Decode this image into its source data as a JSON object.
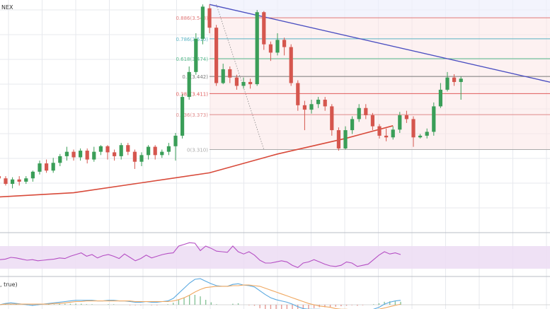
{
  "header": {
    "exchange_fragment": "NEX",
    "macd_fragment": ", true)"
  },
  "colors": {
    "bull": "#3a9e58",
    "bear": "#d5564e",
    "ema": "#d84a3a",
    "trendline": "#4b4fc1",
    "rsi": "#b54fc4",
    "rsi_band": "#ecdcf3",
    "macd": "#5aa9e0",
    "signal": "#f0a860",
    "fib_shade": "#fbe6e6",
    "fib_top_shade": "#eeeffc"
  },
  "chart_data": {
    "type": "candlestick",
    "price_range": [
      3.16,
      3.58
    ],
    "fibonacci": {
      "from": 3.31,
      "to": 3.56,
      "levels": [
        {
          "ratio": 0.886,
          "label": "0.886(3.548)",
          "price": 3.548,
          "color": "#e07a7a"
        },
        {
          "ratio": 0.786,
          "label": "0.786(3.510)",
          "price": 3.51,
          "color": "#5ab4c4"
        },
        {
          "ratio": 0.618,
          "label": "0.618(3.474)",
          "price": 3.474,
          "color": "#55b88a"
        },
        {
          "ratio": 0.5,
          "label": "0.5(3.442)",
          "price": 3.442,
          "color": "#777777"
        },
        {
          "ratio": 0.382,
          "label": "0.382(3.411)",
          "price": 3.411,
          "color": "#e05a5a"
        },
        {
          "ratio": 0.236,
          "label": "0.236(3.373)",
          "price": 3.373,
          "color": "#e08a8a"
        },
        {
          "ratio": 0,
          "label": "0(3.310)",
          "price": 3.31,
          "color": "#aaaaaa"
        }
      ]
    },
    "trendline": [
      [
        0,
        3.572
      ],
      [
        55,
        3.418
      ]
    ],
    "ema": [
      [
        -36,
        3.221
      ],
      [
        -20,
        3.232
      ],
      [
        -10,
        3.25
      ],
      [
        0,
        3.268
      ],
      [
        10,
        3.302
      ],
      [
        20,
        3.33
      ],
      [
        27,
        3.353
      ]
    ],
    "candles": [
      [
        -36,
        3.262,
        3.255,
        3.27,
        3.24
      ],
      [
        -35,
        3.255,
        3.266,
        3.272,
        3.25
      ],
      [
        -34,
        3.266,
        3.279,
        3.284,
        3.26
      ],
      [
        -33,
        3.279,
        3.272,
        3.288,
        3.268
      ],
      [
        -32,
        3.272,
        3.262,
        3.275,
        3.255
      ],
      [
        -31,
        3.262,
        3.258,
        3.265,
        3.25
      ],
      [
        -30,
        3.258,
        3.248,
        3.262,
        3.245
      ],
      [
        -29,
        3.248,
        3.256,
        3.26,
        3.24
      ],
      [
        -28,
        3.256,
        3.252,
        3.262,
        3.245
      ],
      [
        -27,
        3.252,
        3.258,
        3.262,
        3.248
      ],
      [
        -26,
        3.258,
        3.27,
        3.272,
        3.252
      ],
      [
        -25,
        3.27,
        3.285,
        3.29,
        3.265
      ],
      [
        -24,
        3.285,
        3.272,
        3.292,
        3.268
      ],
      [
        -23,
        3.272,
        3.286,
        3.295,
        3.268
      ],
      [
        -22,
        3.286,
        3.298,
        3.302,
        3.28
      ],
      [
        -21,
        3.298,
        3.306,
        3.315,
        3.29
      ],
      [
        -20,
        3.306,
        3.296,
        3.31,
        3.29
      ],
      [
        -19,
        3.296,
        3.308,
        3.312,
        3.29
      ],
      [
        -18,
        3.308,
        3.292,
        3.312,
        3.285
      ],
      [
        -17,
        3.292,
        3.306,
        3.315,
        3.288
      ],
      [
        -16,
        3.306,
        3.316,
        3.318,
        3.3
      ],
      [
        -15,
        3.316,
        3.305,
        3.318,
        3.292
      ],
      [
        -14,
        3.305,
        3.298,
        3.31,
        3.29
      ],
      [
        -13,
        3.298,
        3.318,
        3.322,
        3.292
      ],
      [
        -12,
        3.318,
        3.306,
        3.322,
        3.3
      ],
      [
        -11,
        3.306,
        3.288,
        3.31,
        3.275
      ],
      [
        -10,
        3.288,
        3.3,
        3.305,
        3.28
      ],
      [
        -9,
        3.3,
        3.315,
        3.318,
        3.292
      ],
      [
        -8,
        3.315,
        3.3,
        3.318,
        3.292
      ],
      [
        -7,
        3.3,
        3.306,
        3.31,
        3.295
      ],
      [
        -6,
        3.306,
        3.316,
        3.322,
        3.3
      ],
      [
        -5,
        3.316,
        3.335,
        3.34,
        3.29
      ],
      [
        -4,
        3.335,
        3.405,
        3.41,
        3.33
      ],
      [
        -3,
        3.405,
        3.45,
        3.46,
        3.4
      ],
      [
        -2,
        3.45,
        3.51,
        3.52,
        3.445
      ],
      [
        -1,
        3.51,
        3.568,
        3.572,
        3.5
      ],
      [
        0,
        3.565,
        3.53,
        3.572,
        3.52
      ],
      [
        1,
        3.53,
        3.43,
        3.535,
        3.425
      ],
      [
        2,
        3.43,
        3.455,
        3.465,
        3.428
      ],
      [
        3,
        3.455,
        3.44,
        3.46,
        3.43
      ],
      [
        4,
        3.44,
        3.425,
        3.445,
        3.418
      ],
      [
        5,
        3.425,
        3.432,
        3.44,
        3.42
      ],
      [
        6,
        3.432,
        3.428,
        3.438,
        3.42
      ],
      [
        7,
        3.428,
        3.558,
        3.562,
        3.425
      ],
      [
        8,
        3.558,
        3.5,
        3.56,
        3.49
      ],
      [
        9,
        3.5,
        3.485,
        3.505,
        3.47
      ],
      [
        10,
        3.485,
        3.508,
        3.52,
        3.48
      ],
      [
        11,
        3.508,
        3.495,
        3.512,
        3.48
      ],
      [
        12,
        3.495,
        3.43,
        3.5,
        3.425
      ],
      [
        13,
        3.43,
        3.39,
        3.435,
        3.38
      ],
      [
        14,
        3.39,
        3.382,
        3.398,
        3.345
      ],
      [
        15,
        3.382,
        3.392,
        3.4,
        3.375
      ],
      [
        16,
        3.392,
        3.4,
        3.405,
        3.385
      ],
      [
        17,
        3.4,
        3.388,
        3.405,
        3.38
      ],
      [
        18,
        3.388,
        3.345,
        3.392,
        3.335
      ],
      [
        19,
        3.345,
        3.312,
        3.35,
        3.308
      ],
      [
        20,
        3.312,
        3.345,
        3.352,
        3.31
      ],
      [
        21,
        3.345,
        3.365,
        3.37,
        3.338
      ],
      [
        22,
        3.365,
        3.385,
        3.392,
        3.36
      ],
      [
        23,
        3.385,
        3.372,
        3.392,
        3.365
      ],
      [
        24,
        3.372,
        3.352,
        3.376,
        3.345
      ],
      [
        25,
        3.352,
        3.335,
        3.356,
        3.33
      ],
      [
        26,
        3.335,
        3.332,
        3.348,
        3.325
      ],
      [
        27,
        3.332,
        3.346,
        3.352,
        3.328
      ],
      [
        28,
        3.346,
        3.372,
        3.378,
        3.34
      ],
      [
        29,
        3.372,
        3.365,
        3.38,
        3.358
      ],
      [
        30,
        3.365,
        3.332,
        3.37,
        3.315
      ],
      [
        31,
        3.332,
        3.335,
        3.338,
        3.33
      ],
      [
        32,
        3.335,
        3.342,
        3.348,
        3.33
      ],
      [
        33,
        3.342,
        3.388,
        3.395,
        3.335
      ],
      [
        34,
        3.388,
        3.418,
        3.43,
        3.385
      ],
      [
        35,
        3.418,
        3.44,
        3.45,
        3.415
      ],
      [
        36,
        3.44,
        3.432,
        3.446,
        3.425
      ],
      [
        37,
        3.432,
        3.438,
        3.442,
        3.4
      ]
    ],
    "rsi": [
      46,
      47,
      50,
      49,
      47,
      45,
      46,
      44,
      45,
      46,
      47,
      49,
      48,
      52,
      55,
      58,
      52,
      55,
      49,
      53,
      55,
      52,
      48,
      56,
      50,
      44,
      48,
      54,
      49,
      52,
      55,
      57,
      58,
      70,
      73,
      76,
      75,
      62,
      70,
      66,
      61,
      60,
      59,
      70,
      60,
      56,
      60,
      54,
      45,
      40,
      40,
      42,
      44,
      42,
      36,
      32,
      40,
      42,
      46,
      42,
      38,
      35,
      34,
      36,
      42,
      40,
      34,
      36,
      38,
      46,
      54,
      60,
      56,
      58,
      55
    ],
    "macd": [
      0,
      0.002,
      0.003,
      0.002,
      0.001,
      0,
      -0.001,
      0,
      0.001,
      0.002,
      0.003,
      0.004,
      0.005,
      0.006,
      0.007,
      0.007,
      0.007,
      0.007,
      0.006,
      0.006,
      0.007,
      0.007,
      0.006,
      0.006,
      0.005,
      0.004,
      0.004,
      0.005,
      0.004,
      0.004,
      0.005,
      0.006,
      0.01,
      0.018,
      0.026,
      0.034,
      0.04,
      0.041,
      0.037,
      0.033,
      0.03,
      0.029,
      0.029,
      0.032,
      0.033,
      0.031,
      0.03,
      0.028,
      0.022,
      0.016,
      0.011,
      0.008,
      0.006,
      0.004,
      0.001,
      -0.003,
      -0.006,
      -0.007,
      -0.007,
      -0.007,
      -0.008,
      -0.009,
      -0.01,
      -0.01,
      -0.009,
      -0.009,
      -0.01,
      -0.01,
      -0.009,
      -0.007,
      -0.004,
      0.001,
      0.004,
      0.006,
      0.007
    ],
    "signal": [
      0,
      0.001,
      0.001,
      0.001,
      0.001,
      0.001,
      0.001,
      0.001,
      0.001,
      0.001,
      0.002,
      0.002,
      0.003,
      0.004,
      0.005,
      0.005,
      0.006,
      0.006,
      0.006,
      0.006,
      0.006,
      0.006,
      0.006,
      0.006,
      0.006,
      0.005,
      0.005,
      0.005,
      0.005,
      0.005,
      0.005,
      0.005,
      0.006,
      0.008,
      0.011,
      0.015,
      0.02,
      0.024,
      0.027,
      0.028,
      0.029,
      0.029,
      0.029,
      0.03,
      0.03,
      0.031,
      0.031,
      0.03,
      0.029,
      0.026,
      0.023,
      0.02,
      0.017,
      0.014,
      0.011,
      0.008,
      0.005,
      0.002,
      0,
      -0.002,
      -0.003,
      -0.004,
      -0.006,
      -0.007,
      -0.007,
      -0.008,
      -0.008,
      -0.009,
      -0.009,
      -0.008,
      -0.007,
      -0.005,
      -0.003,
      -0.001,
      0.001
    ]
  }
}
